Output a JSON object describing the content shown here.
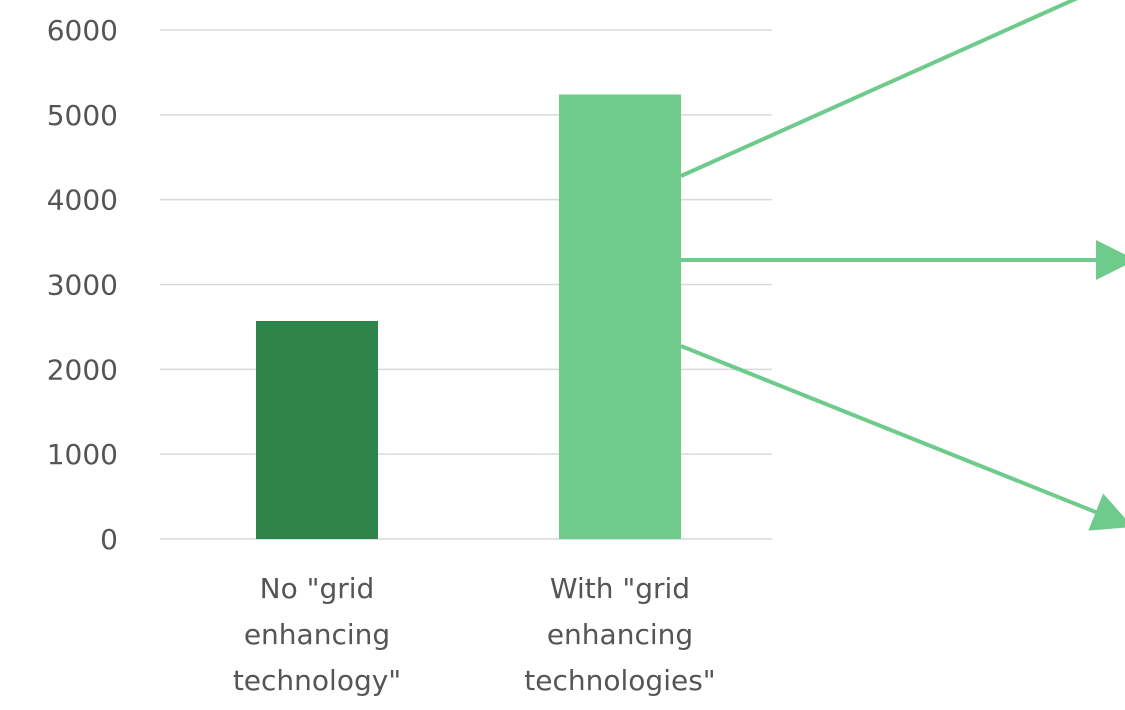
{
  "chart_data": {
    "type": "bar",
    "categories": [
      [
        "No \"grid",
        "enhancing",
        "technology\""
      ],
      [
        "With \"grid",
        "enhancing",
        "technologies\""
      ]
    ],
    "values": [
      2570,
      5240
    ],
    "bar_colors": [
      "#2e844a",
      "#6ecb8c"
    ],
    "ylim": [
      0,
      6000
    ],
    "yticks": [
      0,
      1000,
      2000,
      3000,
      4000,
      5000,
      6000
    ],
    "grid": true,
    "title": "",
    "xlabel": "",
    "ylabel": "",
    "arrow_color": "#6ecb8c",
    "arrows": [
      {
        "direction": "up-right"
      },
      {
        "direction": "right"
      },
      {
        "direction": "down-right"
      }
    ]
  }
}
